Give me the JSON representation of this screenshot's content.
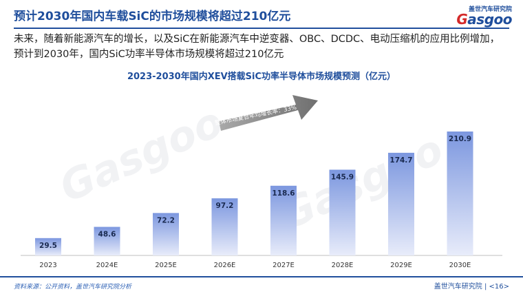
{
  "header": {
    "title": "预计2030年国内车载SiC的市场规模将超过210亿元",
    "logo_tagline": "盖世汽车研究院",
    "logo_word_a": "G",
    "logo_word_rest": "asgoo"
  },
  "body": {
    "text": "未来，随着新能源汽车的增长，以及SiC在新能源汽车中逆变器、OBC、DCDC、电动压缩机的应用比例增加，预计到2030年，国内SiC功率半导体市场规模将超过210亿元"
  },
  "chart_data": {
    "type": "bar",
    "title": "2023-2030年国内XEV搭载SiC功率半导体市场规模预测（亿元）",
    "categories": [
      "2023",
      "2024E",
      "2025E",
      "2026E",
      "2027E",
      "2028E",
      "2029E",
      "2030E"
    ],
    "values": [
      29.5,
      48.6,
      72.2,
      97.2,
      118.6,
      145.9,
      174.7,
      210.9
    ],
    "value_labels": [
      "29.5",
      "48.6",
      "72.2",
      "97.2",
      "118.6",
      "145.9",
      "174.7",
      "210.9"
    ],
    "ylim": [
      0,
      210.9
    ],
    "grid": false,
    "annotation": "整体市场复合年均增长率：33%",
    "bar_color_top": "#7c97df",
    "bar_color_bottom": "#e8ecfa"
  },
  "footer": {
    "source": "资料来源：公开资料，盖世汽车研究院分析",
    "org": "盖世汽车研究院",
    "page": "<16>"
  },
  "colors": {
    "brand": "#1f4e9c",
    "accent": "#d42a2a"
  }
}
